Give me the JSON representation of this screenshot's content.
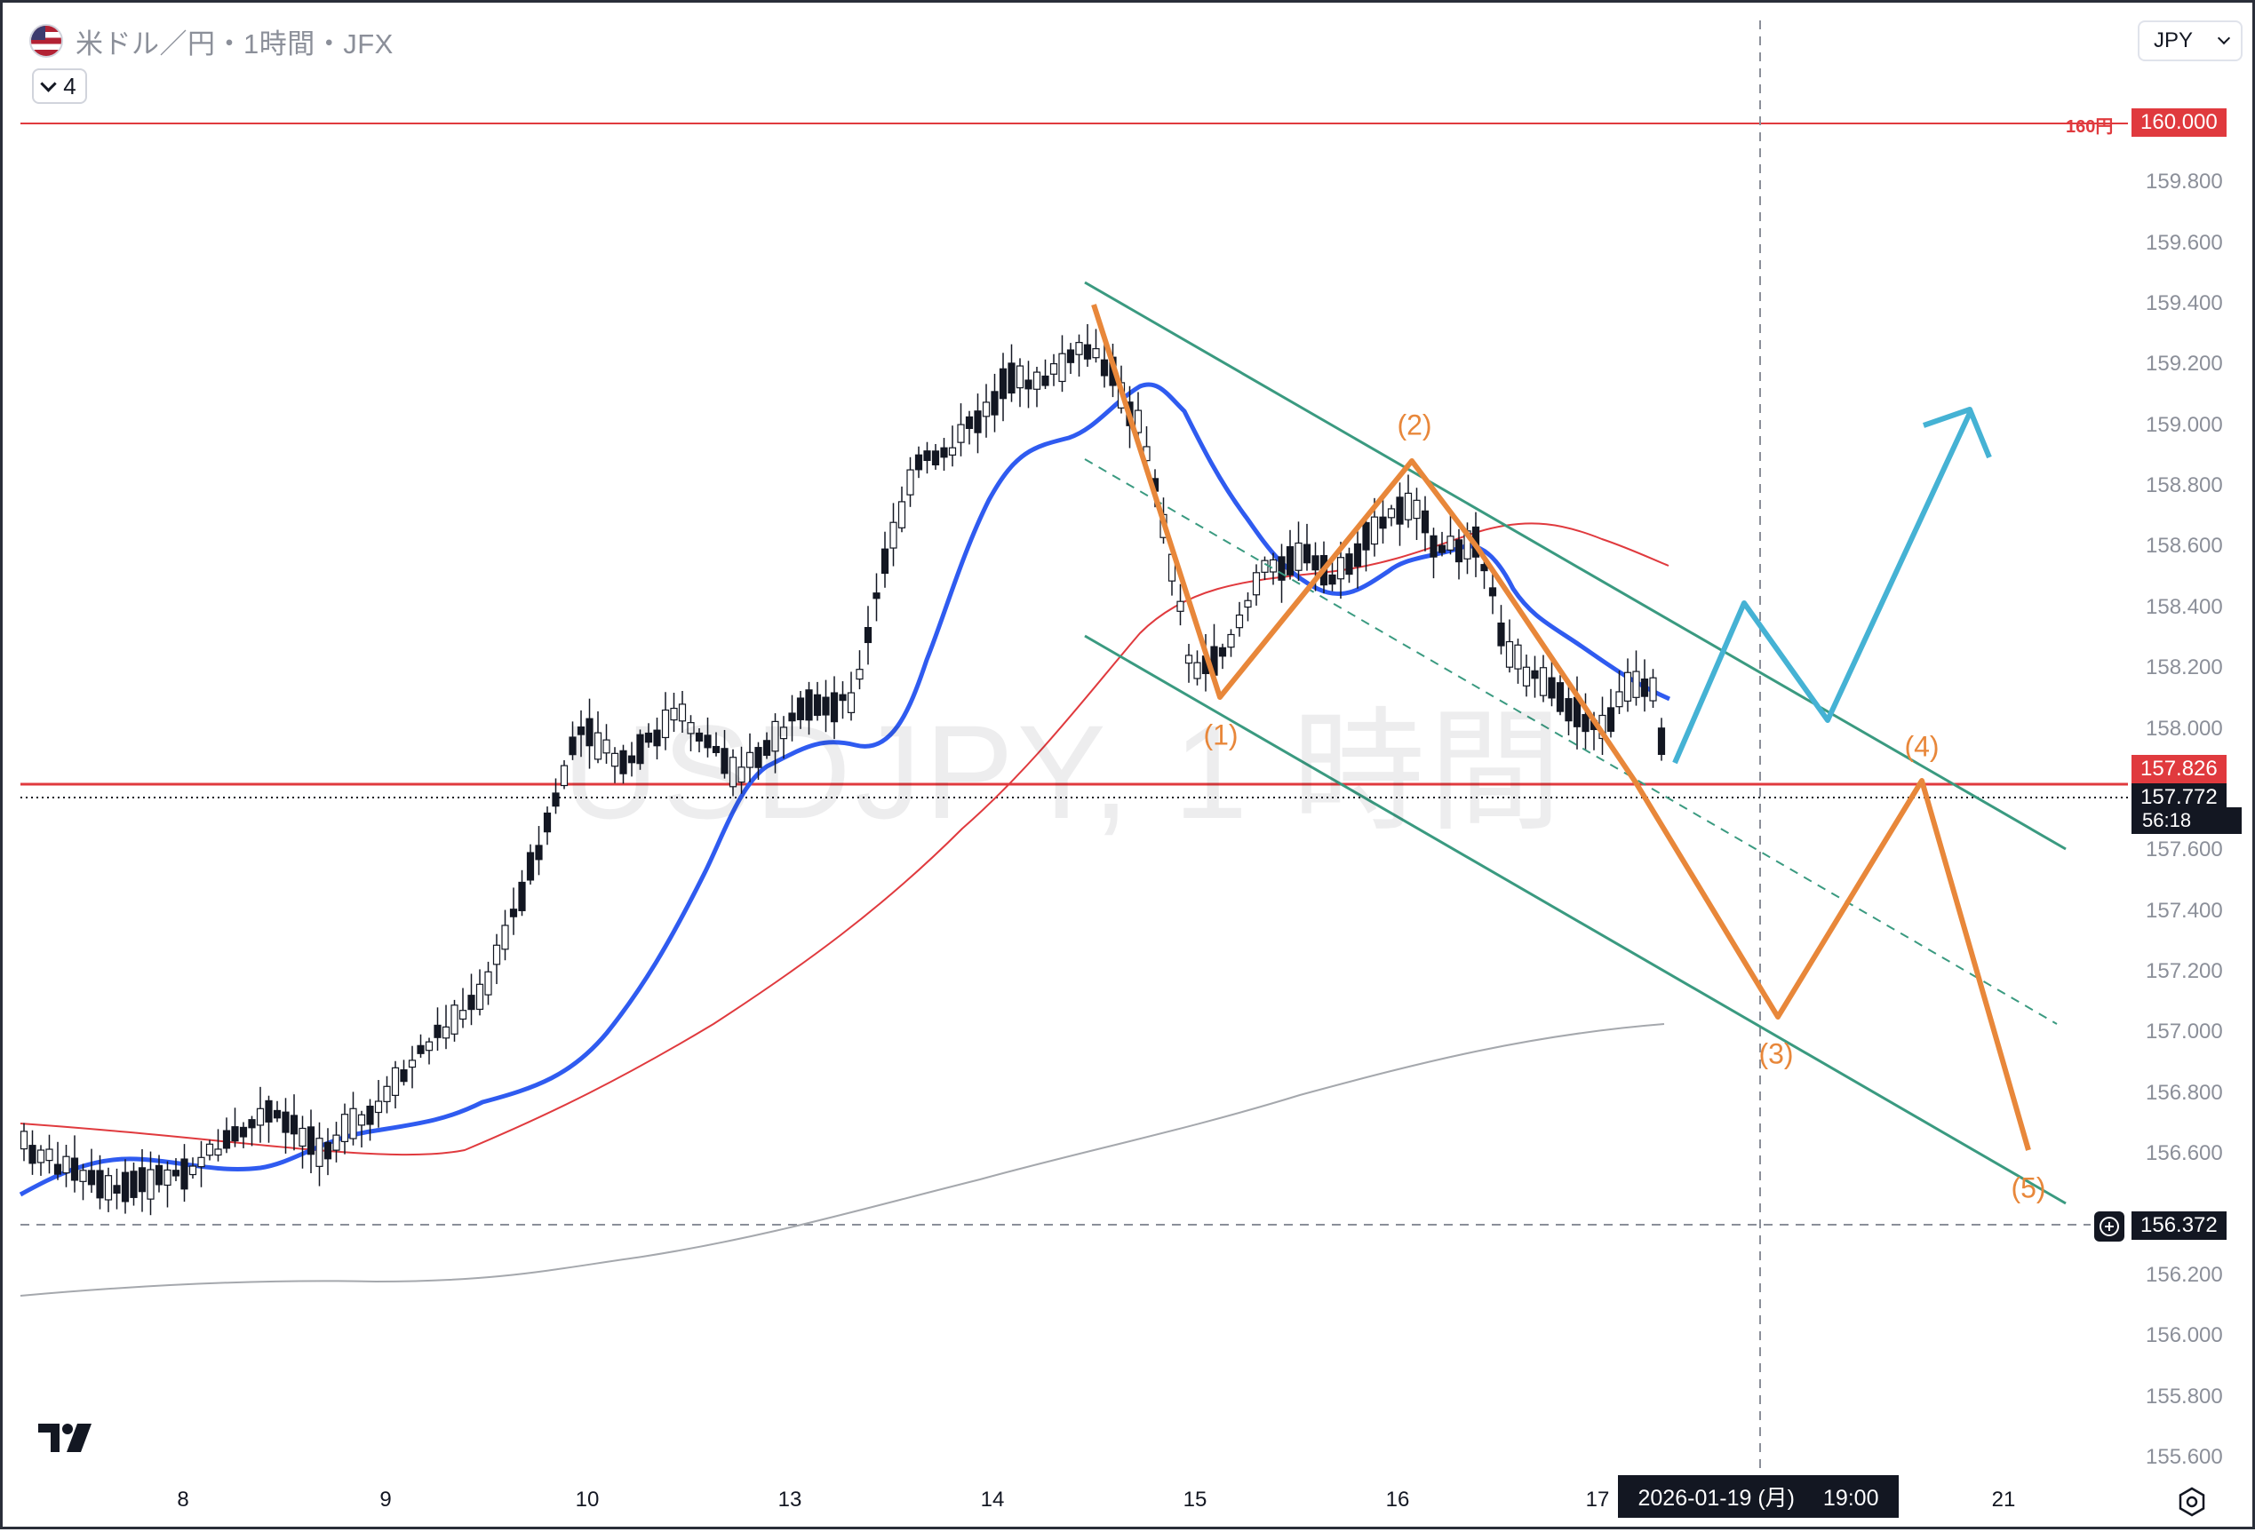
{
  "header": {
    "symbol_title": "米ドル／円・1時間・JFX",
    "indicator_count": "4",
    "currency": "JPY"
  },
  "watermark": "USDJPY, 1 時間",
  "price_axis": {
    "ticks": [
      "159.800",
      "159.600",
      "159.400",
      "159.200",
      "159.000",
      "158.800",
      "158.600",
      "158.400",
      "158.200",
      "158.000",
      "157.600",
      "157.400",
      "157.200",
      "157.000",
      "156.800",
      "156.600",
      "156.200",
      "156.000",
      "155.800",
      "155.600"
    ],
    "level_160": "160.000",
    "level_160_label": "160円",
    "last_price_marker": "157.826",
    "current_price": "157.772",
    "countdown": "56:18",
    "crosshair_price": "156.372"
  },
  "time_axis": {
    "labels": [
      "8",
      "9",
      "10",
      "13",
      "14",
      "15",
      "16",
      "17",
      "21"
    ],
    "crosshair_time": "2026-01-19 (月)　 19:00"
  },
  "wave_labels": [
    "(1)",
    "(2)",
    "(3)",
    "(4)",
    "(5)"
  ],
  "colors": {
    "bull_candle": "#ffffff",
    "bear_candle": "#131722",
    "ma_short": "#2f5bf0",
    "ma_mid": "#e03a3e",
    "ma_long": "#a5a8ad",
    "channel": "#3a9a80",
    "elliott": "#e8873a",
    "scenario": "#45b2d4",
    "level_line": "#e03a3e"
  },
  "chart_data": {
    "type": "line",
    "title": "",
    "xlabel": "",
    "ylabel": "",
    "ylim": [
      155.5,
      160.15
    ],
    "x": [
      "8",
      "9",
      "10",
      "13",
      "14",
      "15",
      "16",
      "17",
      "21"
    ],
    "series": [
      {
        "values": [
          156.75,
          156.7,
          157.9,
          157.85,
          159.15,
          158.2,
          158.55,
          157.85,
          157.0
        ]
      }
    ],
    "horizontal_levels": [
      {
        "label": "160円",
        "value": 160.0
      },
      {
        "value": 157.826
      },
      {
        "value": 157.772
      },
      {
        "value": 156.372
      }
    ],
    "elliott_wave_points": [
      {
        "label": "(1)",
        "value": 158.15
      },
      {
        "label": "(2)",
        "value": 158.88
      },
      {
        "label": "(3)",
        "value": 157.07
      },
      {
        "label": "(4)",
        "value": 157.83
      },
      {
        "label": "(5)",
        "value": 156.62
      }
    ]
  }
}
